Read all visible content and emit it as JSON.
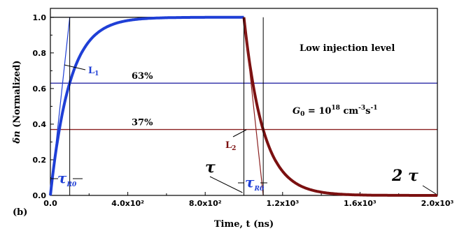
{
  "chart_data": {
    "type": "line",
    "panel_label": "(b)",
    "xlabel": "Time, t (ns)",
    "ylabel_symbol": "δn",
    "ylabel_rest": " (Normalized)",
    "xlim": [
      0,
      2000
    ],
    "ylim": [
      0,
      1.05
    ],
    "x_ticks": [
      0,
      400,
      800,
      1200,
      1600,
      2000
    ],
    "x_tick_labels": [
      "0.0",
      "4.0x10²",
      "8.0x10²",
      "1.2x10³",
      "1.6x10³",
      "2.0x10³"
    ],
    "y_ticks": [
      0.0,
      0.2,
      0.4,
      0.6,
      0.8,
      1.0
    ],
    "y_tick_labels": [
      "0.0",
      "0.2",
      "0.4",
      "0.6",
      "0.8",
      "1.0"
    ],
    "tau_ns": 100,
    "pulse_off_ns": 1000,
    "rise": {
      "color": "#1f3fd6"
    },
    "decay": {
      "color": "#7b1010"
    },
    "reference_lines": [
      {
        "y": 0.63,
        "color": "#2a2aa6",
        "label": "63%"
      },
      {
        "y": 0.37,
        "color": "#8b2020",
        "label": "37%"
      }
    ],
    "annotations": {
      "injection": "Low injection level",
      "g0_main": "G",
      "g0_sub": "0",
      "g0_eq": " = 10",
      "g0_exp": "18",
      "g0_unit": " cm",
      "g0_unit_exp": "-3",
      "g0_s": "s",
      "g0_s_exp": "-1",
      "L1": "L",
      "L1_sub": "1",
      "L2": "L",
      "L2_sub": "2",
      "tau": "τ",
      "tau_sub": "R0",
      "two_tau": "2 τ"
    }
  }
}
